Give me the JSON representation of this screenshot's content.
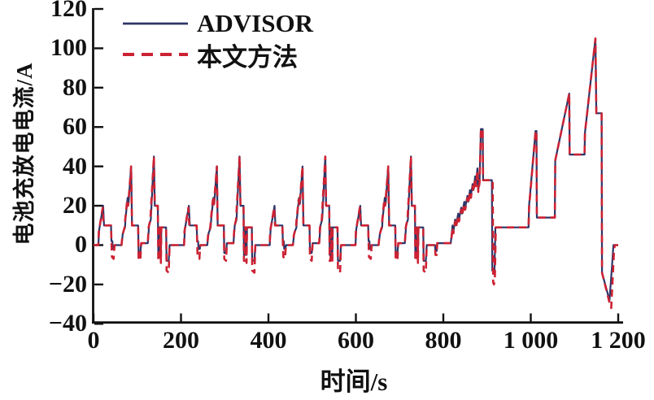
{
  "figure": {
    "background": "#ffffff",
    "axis_color": "#111111"
  },
  "legend": {
    "items": [
      {
        "label": "ADVISOR",
        "color": "#2d3567",
        "style": "solid"
      },
      {
        "label": "本文方法",
        "color": "#cc2233",
        "style": "dashed"
      }
    ]
  },
  "axes": {
    "x_label": "时间/s",
    "y_label": "电池充放电电流/A",
    "x_ticks": [
      {
        "v": 0,
        "label": "0"
      },
      {
        "v": 200,
        "label": "200"
      },
      {
        "v": 400,
        "label": "400"
      },
      {
        "v": 600,
        "label": "600"
      },
      {
        "v": 800,
        "label": "800"
      },
      {
        "v": 1000,
        "label": "1 000"
      },
      {
        "v": 1200,
        "label": "1 200"
      }
    ],
    "y_ticks": [
      {
        "v": 120,
        "label": "120"
      },
      {
        "v": 100,
        "label": "100"
      },
      {
        "v": 80,
        "label": "80"
      },
      {
        "v": 60,
        "label": "60"
      },
      {
        "v": 40,
        "label": "40"
      },
      {
        "v": 20,
        "label": "20"
      },
      {
        "v": 0,
        "label": "0"
      },
      {
        "v": -20,
        "label": "−20"
      },
      {
        "v": -40,
        "label": "−40"
      }
    ]
  },
  "chart_data": {
    "type": "line",
    "title": "",
    "xlabel": "时间/s",
    "ylabel": "电池充放电电流/A",
    "xlim": [
      0,
      1200
    ],
    "ylim": [
      -40,
      120
    ],
    "grid": false,
    "legend_position": "top-left",
    "x_unit": "s",
    "y_unit": "A",
    "ece_segment_starts": [
      0,
      196,
      392,
      588
    ],
    "series": [
      {
        "name": "ADVISOR",
        "color": "#2d3567",
        "style": "solid",
        "ece_pattern": [
          [
            0,
            0
          ],
          [
            11,
            0
          ],
          [
            13,
            8
          ],
          [
            16,
            12
          ],
          [
            22,
            20
          ],
          [
            24,
            10
          ],
          [
            40,
            10
          ],
          [
            41,
            2
          ],
          [
            43,
            2
          ],
          [
            44,
            -2
          ],
          [
            47,
            -2
          ],
          [
            48,
            0
          ],
          [
            64,
            0
          ],
          [
            67,
            6
          ],
          [
            72,
            9
          ],
          [
            73,
            13
          ],
          [
            78,
            24
          ],
          [
            80,
            21
          ],
          [
            86,
            40
          ],
          [
            88,
            10
          ],
          [
            102,
            10
          ],
          [
            103,
            -4
          ],
          [
            107,
            -4
          ],
          [
            109,
            1
          ],
          [
            124,
            1
          ],
          [
            127,
            10
          ],
          [
            131,
            13
          ],
          [
            133,
            22
          ],
          [
            138,
            45
          ],
          [
            140,
            20
          ],
          [
            147,
            20
          ],
          [
            148,
            -5
          ],
          [
            150,
            -5
          ],
          [
            151,
            9
          ],
          [
            153,
            9
          ],
          [
            154,
            -5
          ],
          [
            155,
            9
          ],
          [
            166,
            9
          ],
          [
            167,
            -8
          ],
          [
            172,
            -8
          ],
          [
            174,
            0
          ]
        ],
        "eudc_points": [
          [
            781,
            0
          ],
          [
            782,
            -3
          ],
          [
            785,
            -3
          ],
          [
            786,
            1
          ],
          [
            817,
            1
          ],
          [
            819,
            5
          ],
          [
            821,
            10
          ],
          [
            823,
            7
          ],
          [
            827,
            13
          ],
          [
            829,
            10
          ],
          [
            834,
            16
          ],
          [
            836,
            13
          ],
          [
            841,
            19
          ],
          [
            843,
            16
          ],
          [
            848,
            22
          ],
          [
            850,
            19
          ],
          [
            855,
            25
          ],
          [
            857,
            22
          ],
          [
            861,
            28
          ],
          [
            863,
            25
          ],
          [
            867,
            31
          ],
          [
            869,
            28
          ],
          [
            873,
            35
          ],
          [
            875,
            31
          ],
          [
            878,
            39
          ],
          [
            880,
            28
          ],
          [
            883,
            33
          ],
          [
            886,
            59
          ],
          [
            890,
            59
          ],
          [
            891,
            33
          ],
          [
            911,
            33
          ],
          [
            912,
            -13
          ],
          [
            917,
            -13
          ],
          [
            919,
            9
          ],
          [
            995,
            9
          ],
          [
            996,
            20
          ],
          [
            1011,
            58
          ],
          [
            1013,
            58
          ],
          [
            1014,
            14
          ],
          [
            1055,
            14
          ],
          [
            1056,
            43
          ],
          [
            1088,
            77
          ],
          [
            1089,
            46
          ],
          [
            1123,
            46
          ],
          [
            1124,
            57
          ],
          [
            1148,
            105
          ],
          [
            1150,
            67
          ],
          [
            1162,
            67
          ],
          [
            1163,
            -14
          ],
          [
            1180,
            -28
          ],
          [
            1186,
            -10
          ],
          [
            1189,
            0
          ],
          [
            1200,
            0
          ]
        ]
      },
      {
        "name": "本文方法",
        "color": "#cc2233",
        "style": "dashed",
        "ece_pattern": [
          [
            0,
            0
          ],
          [
            11,
            0
          ],
          [
            12,
            7
          ],
          [
            15,
            11
          ],
          [
            21,
            19
          ],
          [
            23,
            10
          ],
          [
            40,
            10
          ],
          [
            41,
            2
          ],
          [
            42,
            -6
          ],
          [
            46,
            -7
          ],
          [
            48,
            0
          ],
          [
            64,
            0
          ],
          [
            66,
            5
          ],
          [
            71,
            9
          ],
          [
            72,
            12
          ],
          [
            77,
            23
          ],
          [
            79,
            20
          ],
          [
            86,
            40
          ],
          [
            88,
            10
          ],
          [
            102,
            10
          ],
          [
            103,
            -7
          ],
          [
            107,
            -8
          ],
          [
            109,
            1
          ],
          [
            124,
            1
          ],
          [
            126,
            9
          ],
          [
            130,
            13
          ],
          [
            132,
            21
          ],
          [
            138,
            45
          ],
          [
            140,
            20
          ],
          [
            147,
            20
          ],
          [
            148,
            -8
          ],
          [
            150,
            -8
          ],
          [
            151,
            9
          ],
          [
            153,
            9
          ],
          [
            154,
            -9
          ],
          [
            155,
            9
          ],
          [
            166,
            9
          ],
          [
            167,
            -13
          ],
          [
            172,
            -14
          ],
          [
            174,
            0
          ]
        ],
        "eudc_points": [
          [
            781,
            0
          ],
          [
            782,
            -5
          ],
          [
            785,
            -5
          ],
          [
            786,
            1
          ],
          [
            817,
            1
          ],
          [
            819,
            4
          ],
          [
            821,
            9
          ],
          [
            823,
            6
          ],
          [
            827,
            12
          ],
          [
            829,
            9
          ],
          [
            834,
            15
          ],
          [
            836,
            12
          ],
          [
            841,
            18
          ],
          [
            843,
            15
          ],
          [
            848,
            21
          ],
          [
            850,
            18
          ],
          [
            855,
            24
          ],
          [
            857,
            21
          ],
          [
            861,
            27
          ],
          [
            863,
            24
          ],
          [
            867,
            30
          ],
          [
            869,
            27
          ],
          [
            873,
            34
          ],
          [
            875,
            30
          ],
          [
            878,
            38
          ],
          [
            880,
            27
          ],
          [
            883,
            32
          ],
          [
            886,
            59
          ],
          [
            890,
            59
          ],
          [
            891,
            33
          ],
          [
            913,
            33
          ],
          [
            914,
            -19
          ],
          [
            916,
            -20
          ],
          [
            918,
            -16
          ],
          [
            920,
            9
          ],
          [
            995,
            9
          ],
          [
            996,
            19
          ],
          [
            1011,
            58
          ],
          [
            1013,
            58
          ],
          [
            1014,
            14
          ],
          [
            1055,
            14
          ],
          [
            1056,
            43
          ],
          [
            1088,
            77
          ],
          [
            1089,
            46
          ],
          [
            1123,
            46
          ],
          [
            1124,
            57
          ],
          [
            1148,
            105
          ],
          [
            1150,
            67
          ],
          [
            1162,
            67
          ],
          [
            1163,
            -14
          ],
          [
            1181,
            -30
          ],
          [
            1184,
            -32
          ],
          [
            1190,
            -5
          ],
          [
            1192,
            0
          ],
          [
            1200,
            0
          ]
        ]
      }
    ]
  }
}
